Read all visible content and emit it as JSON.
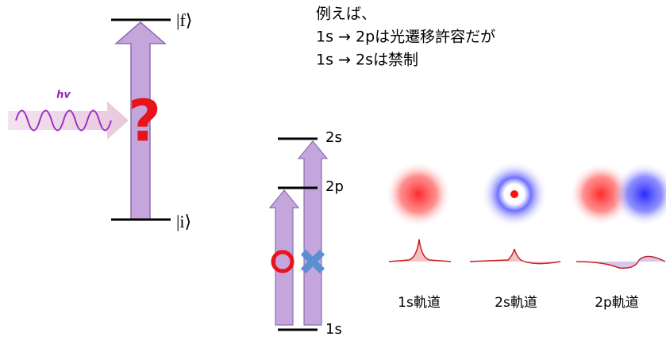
{
  "left": {
    "upper_state": "|f⟩",
    "lower_state": "|i⟩",
    "photon": "hv",
    "question": "?"
  },
  "note": {
    "lines": [
      "例えば、",
      "1s → 2pは光遷移許容だが",
      "1s → 2sは禁制"
    ]
  },
  "levels": {
    "top": "2s",
    "middle": "2p",
    "bottom": "1s"
  },
  "orbitals": [
    "1s軌道",
    "2s軌道",
    "2p軌道"
  ]
}
